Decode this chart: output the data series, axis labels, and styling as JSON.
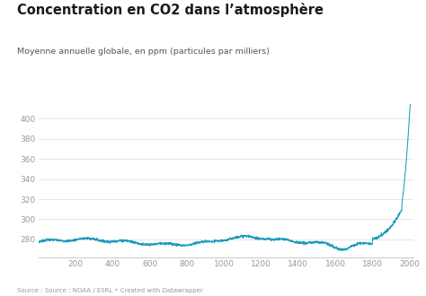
{
  "title": "Concentration en CO2 dans l’atmosphère",
  "subtitle": "Moyenne annuelle globale, en ppm (particules par milliers)",
  "source": "Source : Source : NOAA / ESRL • Created with Datawrapper",
  "line_color": "#1b9cbc",
  "background_color": "#ffffff",
  "xlim": [
    0,
    2020
  ],
  "ylim": [
    262,
    415
  ],
  "yticks": [
    280,
    300,
    320,
    340,
    360,
    380,
    400
  ],
  "xticks": [
    200,
    400,
    600,
    800,
    1000,
    1200,
    1400,
    1600,
    1800,
    2000
  ]
}
